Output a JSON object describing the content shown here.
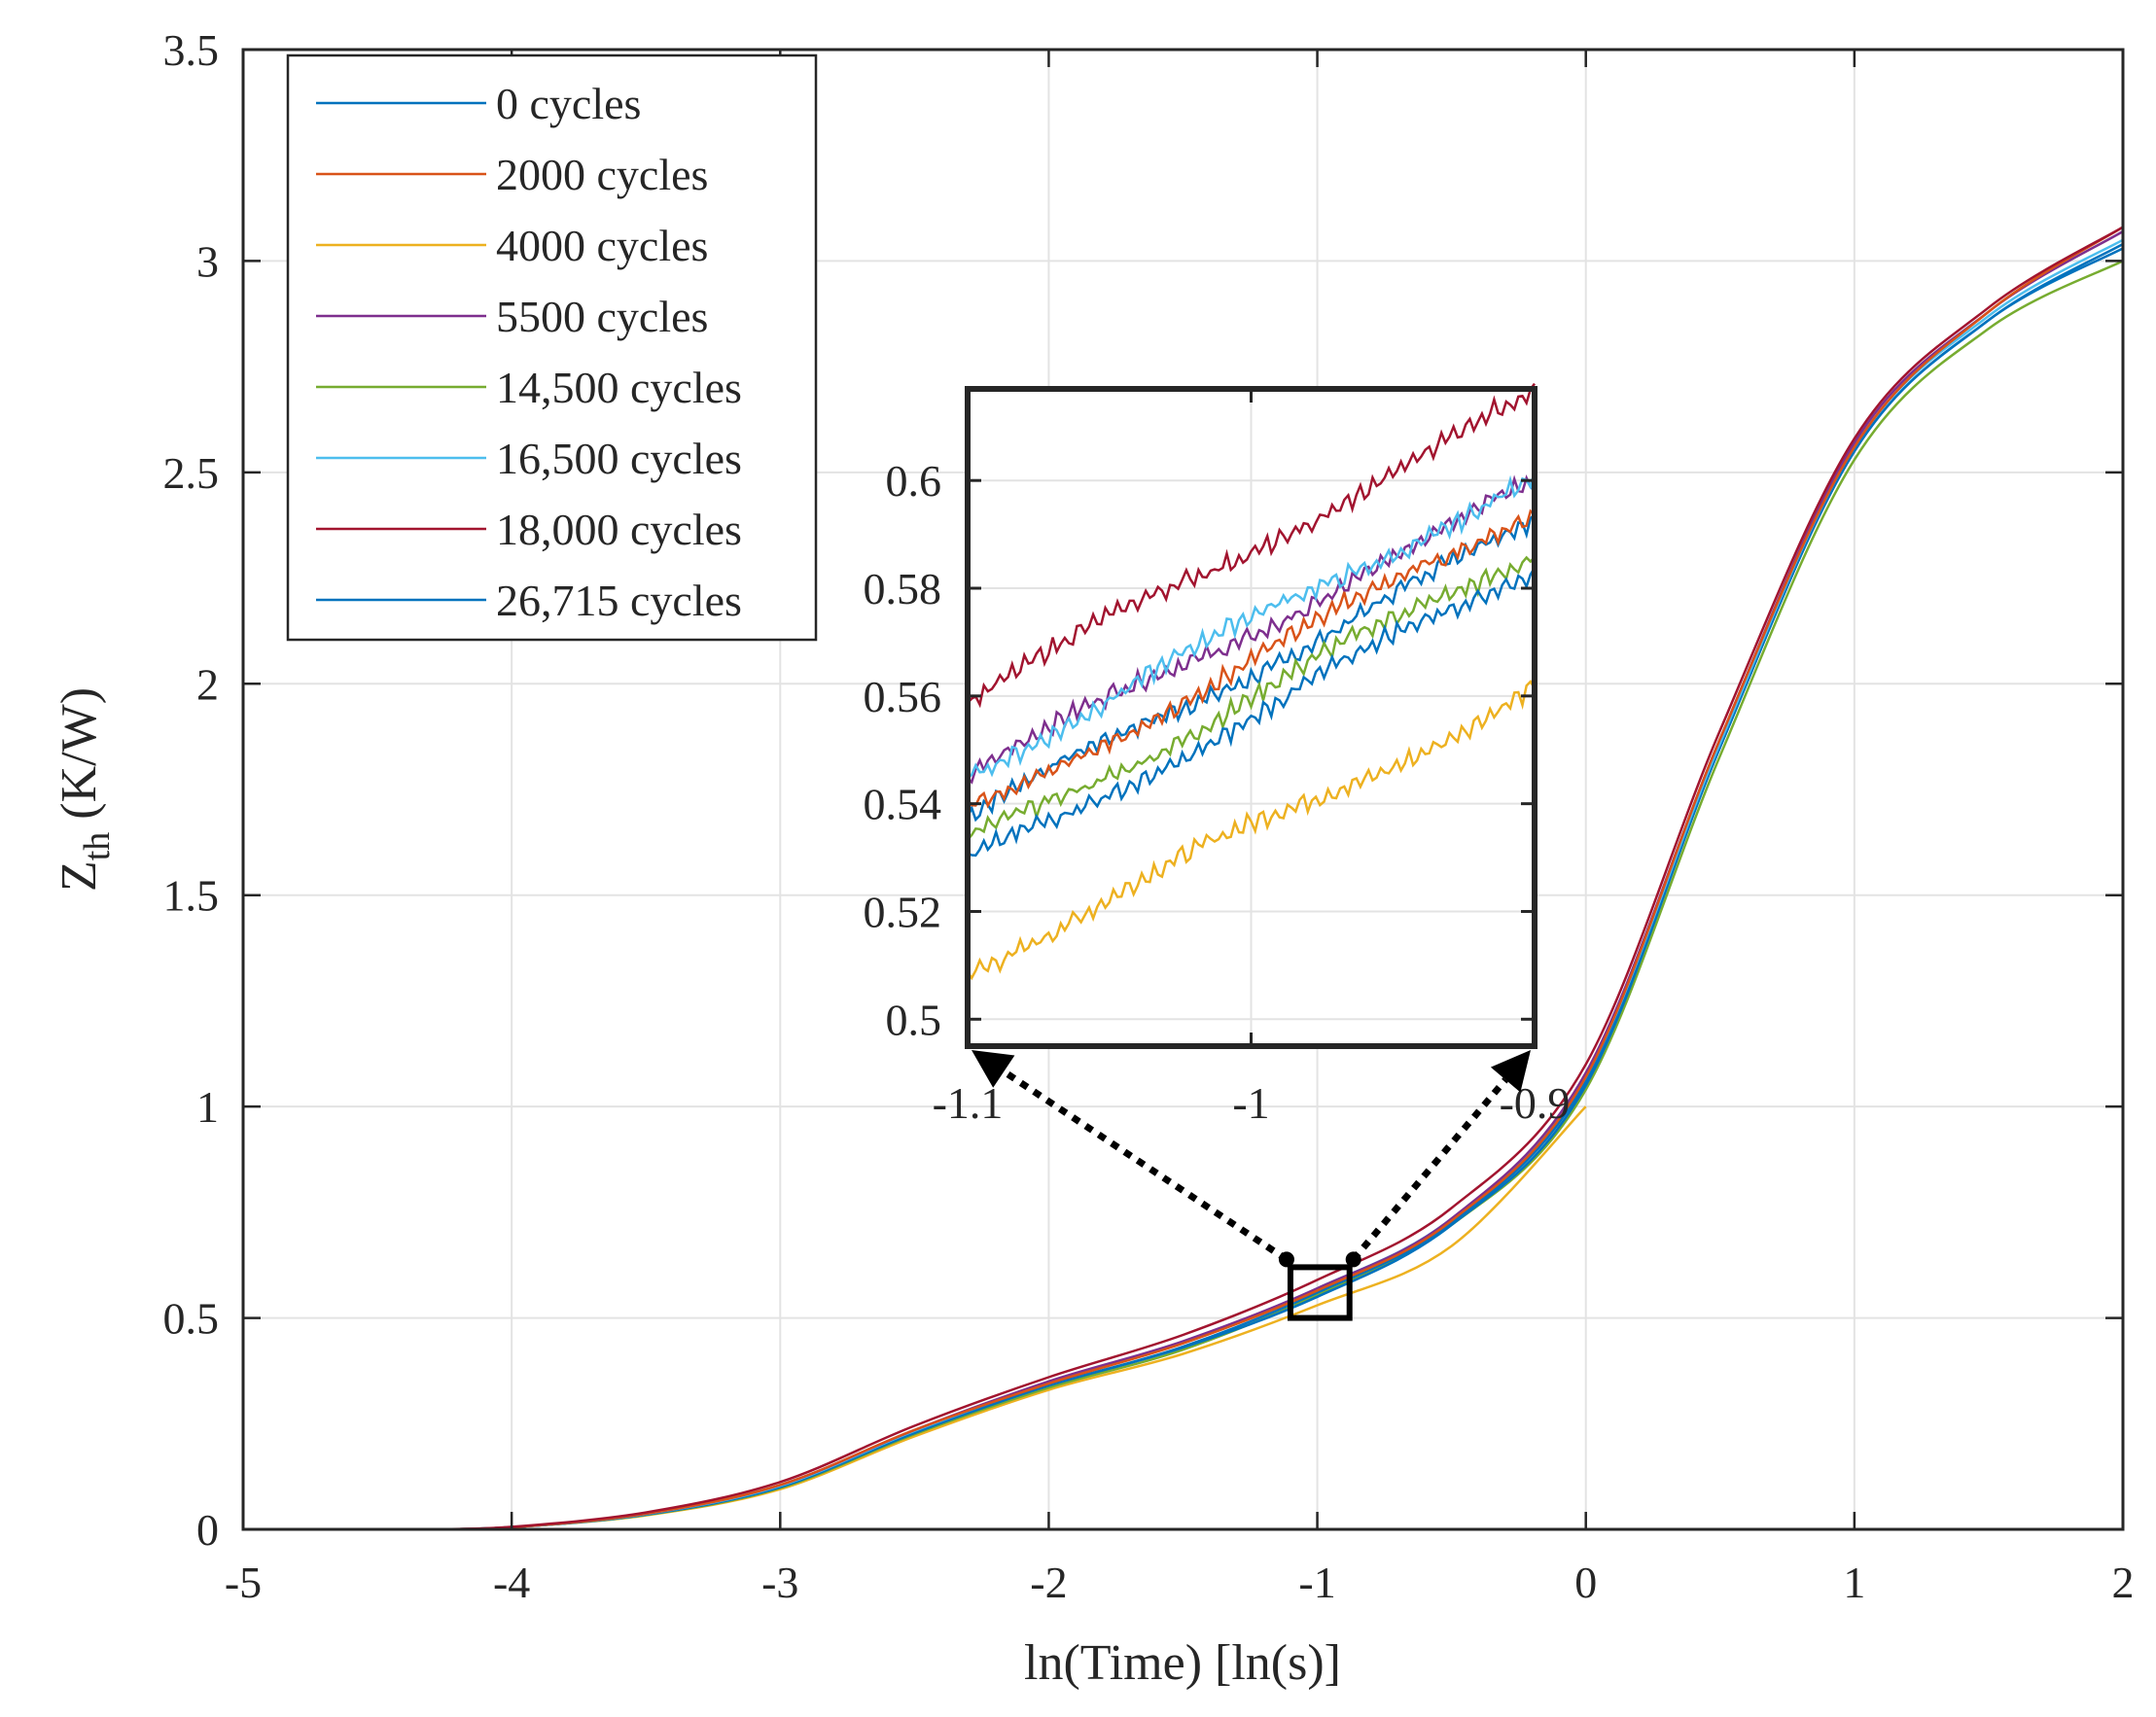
{
  "chart_data": {
    "type": "line",
    "title": "",
    "xlabel": "ln(Time) [ln(s)]",
    "ylabel_main": "Z",
    "ylabel_sub": "th",
    "ylabel_unit": " (K/W)",
    "xlim": [
      -5,
      2
    ],
    "ylim": [
      0,
      3.5
    ],
    "xticks": [
      -5,
      -4,
      -3,
      -2,
      -1,
      0,
      1,
      2
    ],
    "xtick_labels": [
      "-5",
      "-4",
      "-3",
      "-2",
      "-1",
      "0",
      "1",
      "2"
    ],
    "yticks": [
      0,
      0.5,
      1,
      1.5,
      2,
      2.5,
      3,
      3.5
    ],
    "ytick_labels": [
      "0",
      "0.5",
      "1",
      "1.5",
      "2",
      "2.5",
      "3",
      "3.5"
    ],
    "grid": true,
    "legend_position": "top-left",
    "series": [
      {
        "name": "0 cycles",
        "color": "#0072BD",
        "x": [
          -4.3,
          -4.0,
          -3.5,
          -3.0,
          -2.5,
          -2.0,
          -1.5,
          -1.0,
          -0.5,
          0.0,
          0.5,
          1.0,
          1.5,
          2.0
        ],
        "y": [
          0.0,
          0.005,
          0.035,
          0.1,
          0.23,
          0.34,
          0.43,
          0.55,
          0.72,
          1.05,
          1.85,
          2.55,
          2.86,
          3.03
        ]
      },
      {
        "name": "2000 cycles",
        "color": "#D95319",
        "x": [
          -4.3,
          -4.0,
          -3.5,
          -3.0,
          -2.5,
          -2.0,
          -1.5,
          -1.0,
          -0.5,
          0.0,
          0.5,
          1.0,
          1.5,
          2.0
        ],
        "y": [
          0.0,
          0.005,
          0.037,
          0.105,
          0.235,
          0.345,
          0.44,
          0.565,
          0.73,
          1.07,
          1.87,
          2.56,
          2.88,
          3.08
        ]
      },
      {
        "name": "4000 cycles",
        "color": "#EDB120",
        "x": [
          -4.3,
          -4.0,
          -3.5,
          -3.0,
          -2.5,
          -2.0,
          -1.5,
          -1.0,
          -0.5,
          0.0
        ],
        "y": [
          0.0,
          0.005,
          0.033,
          0.095,
          0.22,
          0.33,
          0.415,
          0.53,
          0.67,
          1.0
        ]
      },
      {
        "name": "5500 cycles",
        "color": "#7E2F8E",
        "x": [
          -4.3,
          -4.0,
          -3.5,
          -3.0,
          -2.5,
          -2.0,
          -1.5,
          -1.0,
          -0.5,
          0.0,
          0.5,
          1.0,
          1.5,
          2.0
        ],
        "y": [
          0.0,
          0.005,
          0.037,
          0.105,
          0.235,
          0.35,
          0.445,
          0.57,
          0.735,
          1.08,
          1.87,
          2.57,
          2.88,
          3.07
        ]
      },
      {
        "name": "14,500 cycles",
        "color": "#77AC30",
        "x": [
          -4.3,
          -4.0,
          -3.5,
          -3.0,
          -2.5,
          -2.0,
          -1.5,
          -1.0,
          -0.5,
          0.0,
          0.5,
          1.0,
          1.5,
          2.0
        ],
        "y": [
          0.0,
          0.005,
          0.034,
          0.098,
          0.225,
          0.335,
          0.425,
          0.555,
          0.72,
          1.04,
          1.83,
          2.53,
          2.84,
          3.0
        ]
      },
      {
        "name": "16,500 cycles",
        "color": "#4DBEEE",
        "x": [
          -4.3,
          -4.0,
          -3.5,
          -3.0,
          -2.5,
          -2.0,
          -1.5,
          -1.0,
          -0.5,
          0.0,
          0.5,
          1.0,
          1.5,
          2.0
        ],
        "y": [
          0.0,
          0.005,
          0.036,
          0.103,
          0.233,
          0.347,
          0.443,
          0.57,
          0.735,
          1.07,
          1.86,
          2.56,
          2.87,
          3.05
        ]
      },
      {
        "name": "18,000 cycles",
        "color": "#A2142F",
        "x": [
          -4.3,
          -4.0,
          -3.5,
          -3.0,
          -2.5,
          -2.0,
          -1.5,
          -1.0,
          -0.5,
          0.0,
          0.5,
          1.0,
          1.5,
          2.0
        ],
        "y": [
          0.0,
          0.006,
          0.04,
          0.112,
          0.245,
          0.36,
          0.46,
          0.59,
          0.76,
          1.1,
          1.89,
          2.58,
          2.89,
          3.08
        ]
      },
      {
        "name": "26,715 cycles",
        "color": "#0072BD",
        "x": [
          -4.3,
          -4.0,
          -3.5,
          -3.0,
          -2.5,
          -2.0,
          -1.5,
          -1.0,
          -0.5,
          0.0,
          0.5,
          1.0,
          1.5,
          2.0
        ],
        "y": [
          0.0,
          0.005,
          0.035,
          0.1,
          0.228,
          0.34,
          0.432,
          0.56,
          0.725,
          1.06,
          1.85,
          2.55,
          2.86,
          3.04
        ]
      }
    ],
    "zoom_box": {
      "xlim": [
        -1.1,
        -0.88
      ],
      "ylim": [
        0.5,
        0.62
      ]
    },
    "inset": {
      "xlim": [
        -1.1,
        -0.9
      ],
      "ylim": [
        0.495,
        0.617
      ],
      "xticks": [
        -1.1,
        -1,
        -0.9
      ],
      "xtick_labels": [
        "-1.1",
        "-1",
        "-0.9"
      ],
      "yticks": [
        0.5,
        0.52,
        0.54,
        0.56,
        0.58,
        0.6
      ],
      "ytick_labels": [
        "0.5",
        "0.52",
        "0.54",
        "0.56",
        "0.58",
        "0.6"
      ],
      "series": [
        {
          "name": "0 cycles",
          "color": "#0072BD",
          "y_start": 0.5375,
          "y_end": 0.592
        },
        {
          "name": "2000 cycles",
          "color": "#D95319",
          "y_start": 0.538,
          "y_end": 0.595
        },
        {
          "name": "4000 cycles",
          "color": "#EDB120",
          "y_start": 0.5095,
          "y_end": 0.561
        },
        {
          "name": "5500 cycles",
          "color": "#7E2F8E",
          "y_start": 0.5455,
          "y_end": 0.599
        },
        {
          "name": "14,500 cycles",
          "color": "#77AC30",
          "y_start": 0.5325,
          "y_end": 0.587
        },
        {
          "name": "16,500 cycles",
          "color": "#4DBEEE",
          "y_start": 0.546,
          "y_end": 0.601
        },
        {
          "name": "18,000 cycles",
          "color": "#A2142F",
          "y_start": 0.5595,
          "y_end": 0.6155
        },
        {
          "name": "26,715 cycles",
          "color": "#0072BD",
          "y_start": 0.5285,
          "y_end": 0.584
        }
      ]
    }
  }
}
